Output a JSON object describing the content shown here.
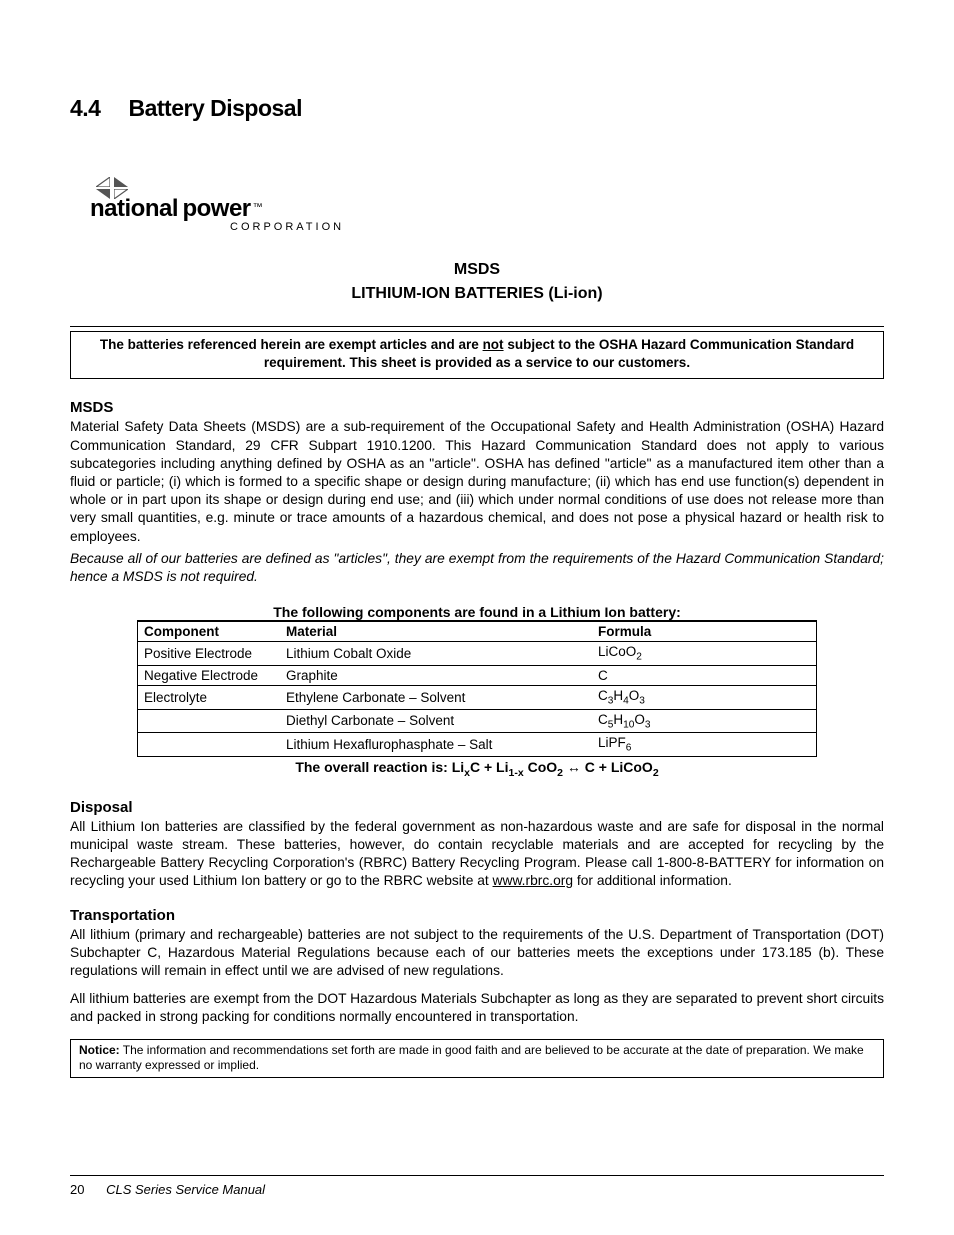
{
  "heading": {
    "number": "4.4",
    "title": "Battery Disposal"
  },
  "logo": {
    "name_a": "national",
    "name_b": "power",
    "tm": "™",
    "sub": "CORPORATION"
  },
  "doc_title": {
    "line1": "MSDS",
    "line2": "LITHIUM-ION BATTERIES (Li-ion)"
  },
  "notice1": {
    "pre": "The batteries referenced herein are exempt articles and are ",
    "underlined": "not",
    "post": " subject to the OSHA Hazard Communication Standard requirement. This sheet is provided as a service to our customers."
  },
  "msds_heading": "MSDS",
  "msds_body": "Material Safety Data Sheets (MSDS) are a sub-requirement of the Occupational Safety and Health Administration (OSHA) Hazard Communication Standard, 29 CFR Subpart 1910.1200. This Hazard Communication Standard does not apply to various subcategories including anything defined by OSHA as an \"article\". OSHA has defined \"article\" as a manufactured item other than a fluid or particle; (i) which is formed to a specific shape or design during manufacture; (ii) which has end use function(s) dependent in whole or in part upon its shape or design during end use; and (iii) which under normal conditions of use does not release more than very small quantities, e.g. minute or trace amounts of a hazardous chemical, and does not pose a physical hazard or health risk to employees.",
  "msds_italic": "Because all of our batteries are defined as \"articles\", they are exempt from the requirements of the Hazard Communication Standard; hence a MSDS is not required.",
  "table": {
    "caption": "The following components are found in a Lithium Ion battery:",
    "headers": {
      "c1": "Component",
      "c2": "Material",
      "c3": "Formula"
    },
    "rows": [
      {
        "c1": "Positive Electrode",
        "c2": "Lithium Cobalt Oxide",
        "f_pre": "LiCoO",
        "f_sub": "2",
        "f_post": ""
      },
      {
        "c1": "Negative Electrode",
        "c2": "Graphite",
        "f_pre": "C",
        "f_sub": "",
        "f_post": ""
      },
      {
        "c1": "Electrolyte",
        "c2": "Ethylene Carbonate – Solvent",
        "f_html": "C<sub>3</sub>H<sub>4</sub>O<sub>3</sub>"
      },
      {
        "c1": "",
        "c2": "Diethyl Carbonate – Solvent",
        "f_html": "C<sub>5</sub>H<sub>10</sub>O<sub>3</sub>"
      },
      {
        "c1": "",
        "c2": "Lithium Hexaflurophasphate – Salt",
        "f_html": "LiPF<sub>6</sub>"
      }
    ],
    "footer_html": "The overall reaction is: Li<sub>x</sub>C + Li<sub>1-x</sub> CoO<sub>2</sub> ↔ C + LiCoO<sub>2</sub>"
  },
  "disposal_heading": "Disposal",
  "disposal_body_pre": "All Lithium Ion batteries are classified by the federal government as non-hazardous waste and are safe for disposal in the normal municipal waste stream. These batteries, however, do contain recyclable materials and are accepted for recycling by the Rechargeable Battery Recycling Corporation's (RBRC) Battery Recycling Program. Please call 1-800-8-BATTERY for information on recycling your used Lithium Ion battery or go to the RBRC website at ",
  "disposal_link": "www.rbrc.org",
  "disposal_body_post": " for additional information.",
  "transport_heading": "Transportation",
  "transport_p1": "All lithium (primary and rechargeable) batteries are not subject to the requirements of the U.S. Department of Transportation (DOT) Subchapter C, Hazardous Material Regulations because each of our batteries meets the exceptions under 173.185 (b).  These regulations will remain in effect until we are advised of new regulations.",
  "transport_p2": "All lithium batteries are exempt from the DOT Hazardous Materials Subchapter as long as they are separated to prevent short circuits and packed in strong packing for conditions normally encountered in transportation.",
  "notice2": {
    "label": "Notice:",
    "text": " The information and recommendations set forth are made in good faith and are believed to be accurate at the date of preparation. We make no warranty expressed or implied."
  },
  "footer": {
    "page": "20",
    "title": "CLS Series Service Manual"
  }
}
